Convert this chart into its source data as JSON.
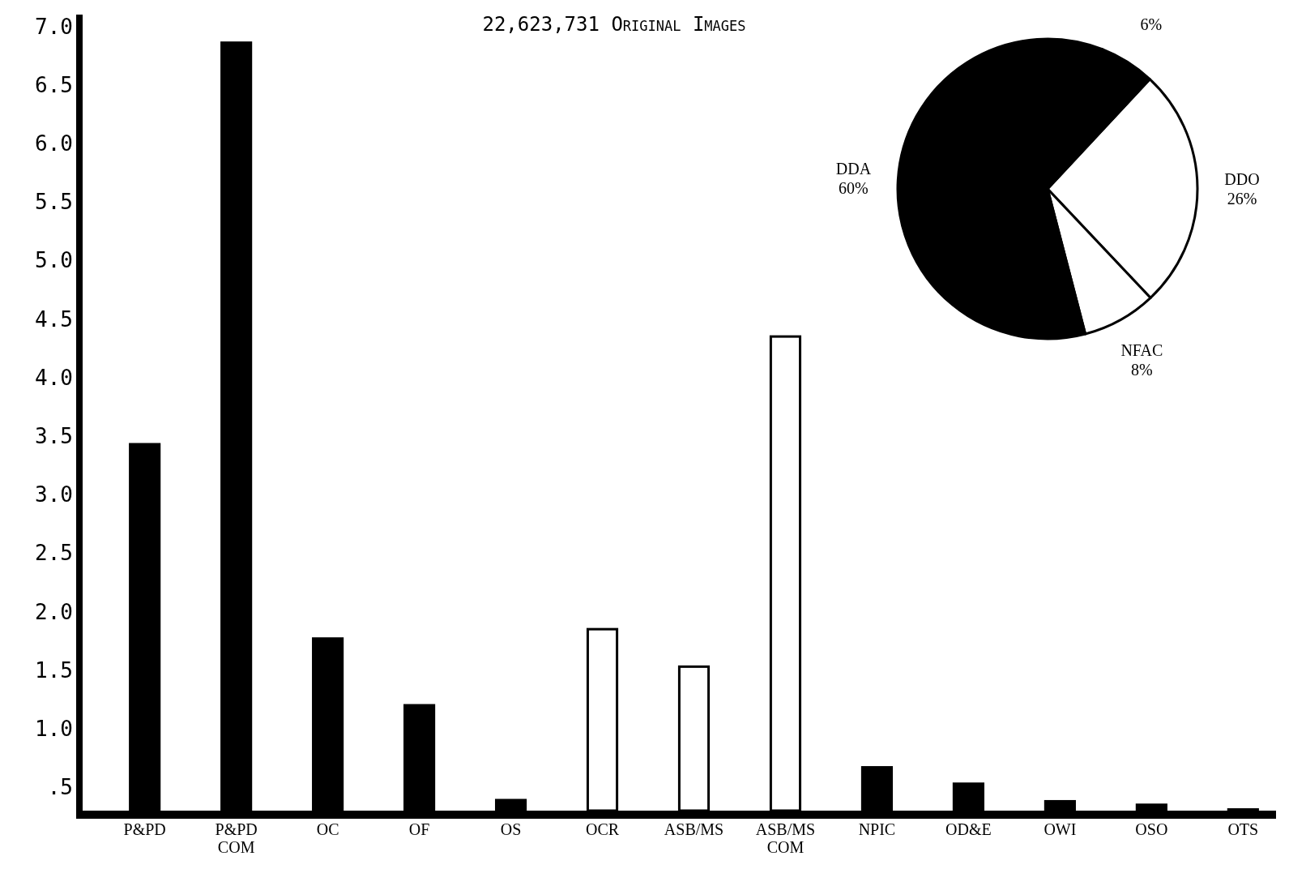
{
  "chart_data": [
    {
      "type": "bar",
      "title": "22,623,731 Original Images",
      "categories": [
        "P&PD",
        "P&PD COM",
        "OC",
        "OF",
        "OS",
        "OCR",
        "ASB/MS",
        "ASB/MS COM",
        "NPIC",
        "OD&E",
        "OWI",
        "OSO",
        "OTS"
      ],
      "values": [
        3.43,
        6.86,
        1.77,
        1.2,
        0.39,
        1.85,
        1.53,
        4.35,
        0.67,
        0.53,
        0.38,
        0.35,
        0.31
      ],
      "colors": [
        "#000000",
        "#000000",
        "#000000",
        "#000000",
        "#000000",
        "#ffffff",
        "#ffffff",
        "#ffffff",
        "#000000",
        "#000000",
        "#000000",
        "#000000",
        "#000000"
      ],
      "ylim": [
        0.3,
        7.1
      ],
      "yticks": [
        {
          "value": 0.5,
          "label": ".5"
        },
        {
          "value": 1,
          "label": "1.0"
        },
        1.5,
        {
          "value": 2,
          "label": "2.0"
        },
        2.5,
        {
          "value": 3,
          "label": "3.0"
        },
        3.5,
        {
          "value": 4,
          "label": "4.0"
        },
        4.5,
        {
          "value": 5,
          "label": "5.0"
        },
        5.5,
        {
          "value": 6,
          "label": "6.0"
        },
        6.5,
        {
          "value": 7,
          "label": "7.0"
        }
      ],
      "grid": false
    },
    {
      "type": "pie",
      "categories": [
        "DDO",
        "NFAC",
        "DDA",
        null
      ],
      "values": [
        26,
        8,
        60,
        6
      ],
      "colors": [
        "#ffffff",
        "#ffffff",
        "#000000",
        "#000000"
      ],
      "value_labels": [
        "26%",
        "8%",
        "60%",
        "6%"
      ]
    }
  ]
}
